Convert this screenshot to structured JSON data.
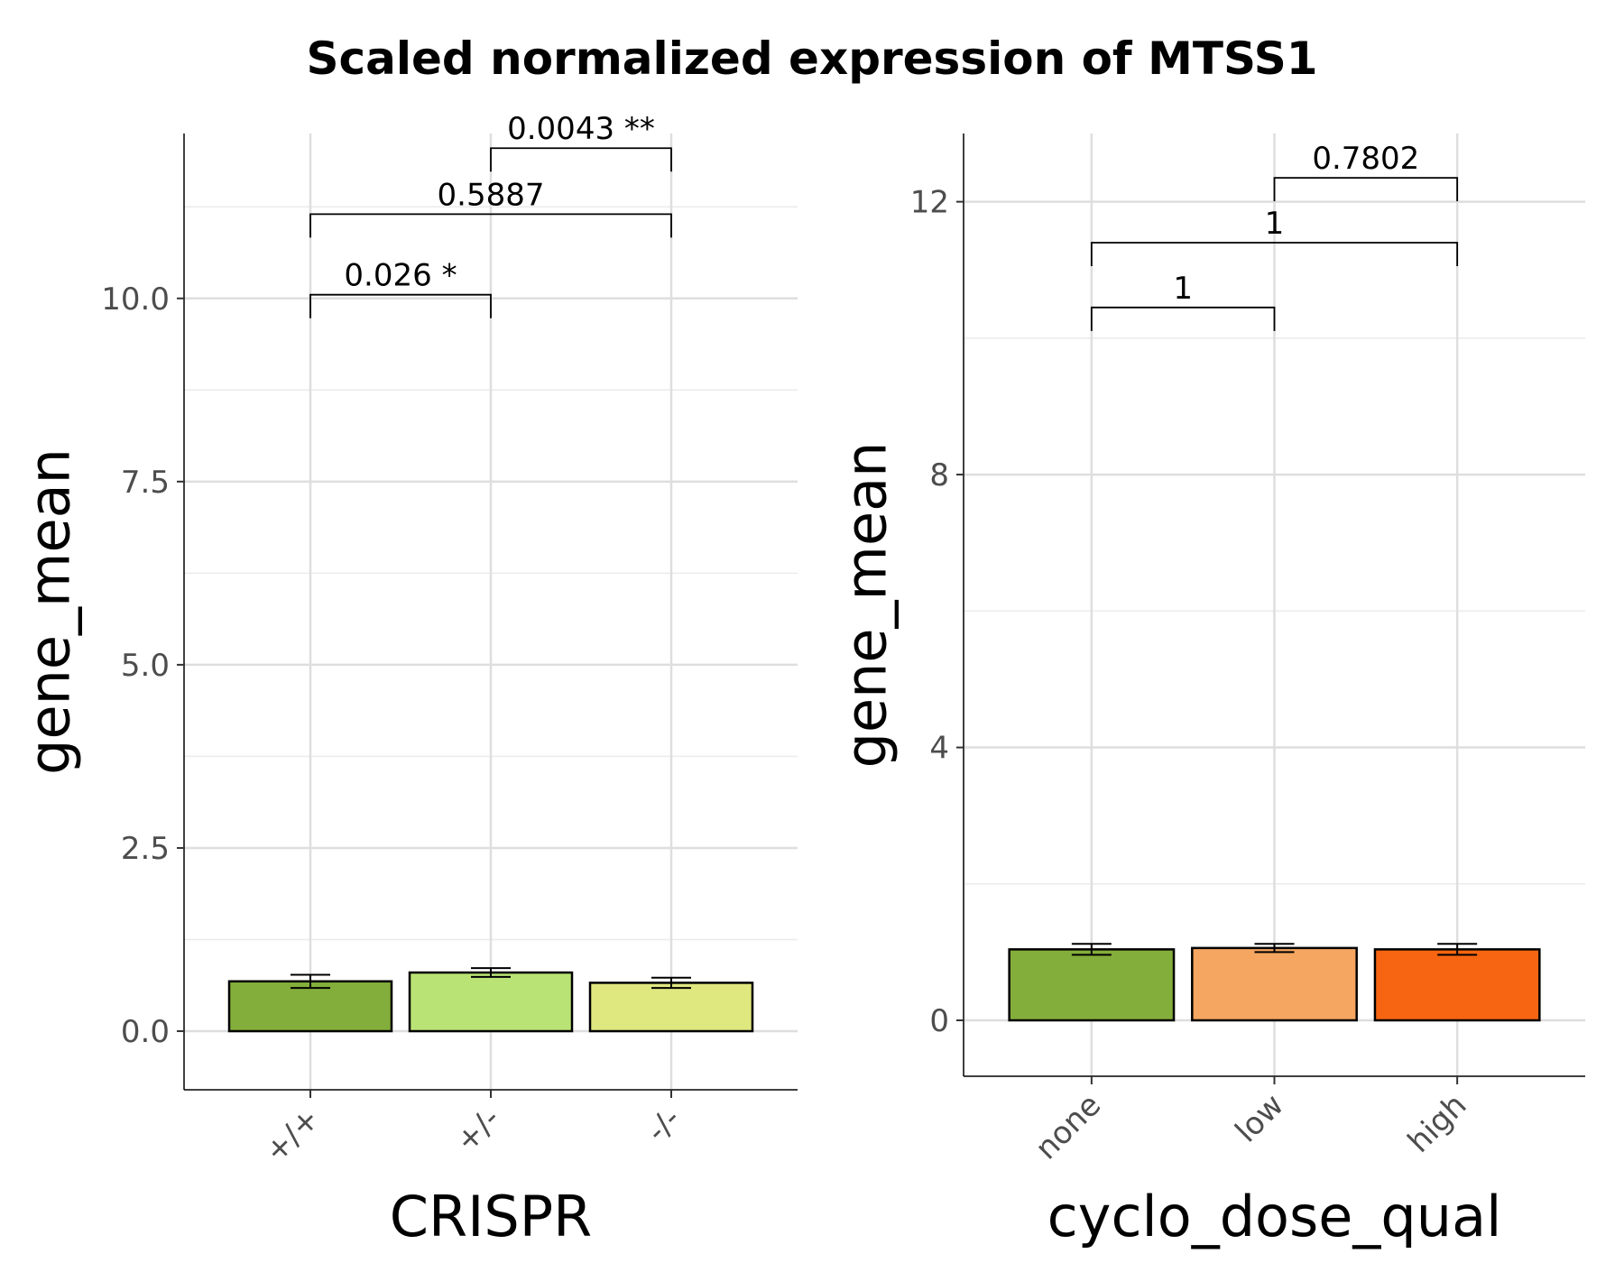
{
  "title": "Scaled normalized expression of MTSS1",
  "chart_data": [
    {
      "type": "bar",
      "xlabel": "CRISPR",
      "ylabel": "gene_mean",
      "ylim": [
        -0.8,
        12.25
      ],
      "yticks": [
        0.0,
        2.5,
        5.0,
        7.5,
        10.0
      ],
      "ytick_labels": [
        "0.0",
        "2.5",
        "5.0",
        "7.5",
        "10.0"
      ],
      "categories": [
        "+/+",
        "+/-",
        "-/-"
      ],
      "values": [
        0.68,
        0.8,
        0.66
      ],
      "errors": [
        0.09,
        0.06,
        0.07
      ],
      "colors": [
        "#84ae3b",
        "#bae375",
        "#dfe77f"
      ],
      "grid": true,
      "comparisons": [
        {
          "from": 0,
          "to": 1,
          "y": 10.05,
          "label": "0.026 *"
        },
        {
          "from": 0,
          "to": 2,
          "y": 11.15,
          "label": "0.5887"
        },
        {
          "from": 1,
          "to": 2,
          "y": 12.05,
          "label": "0.0043 **"
        }
      ]
    },
    {
      "type": "bar",
      "xlabel": "cyclo_dose_qual",
      "ylabel": "gene_mean",
      "ylim": [
        -0.82,
        13.0
      ],
      "yticks": [
        0,
        4,
        8,
        12
      ],
      "ytick_labels": [
        "0",
        "4",
        "8",
        "12"
      ],
      "categories": [
        "none",
        "low",
        "high"
      ],
      "values": [
        1.04,
        1.06,
        1.04
      ],
      "errors": [
        0.08,
        0.06,
        0.08
      ],
      "colors": [
        "#84ae3b",
        "#f5a661",
        "#f86512"
      ],
      "grid": true,
      "comparisons": [
        {
          "from": 0,
          "to": 1,
          "y": 10.45,
          "label": "1"
        },
        {
          "from": 0,
          "to": 2,
          "y": 11.4,
          "label": "1"
        },
        {
          "from": 1,
          "to": 2,
          "y": 12.35,
          "label": "0.7802"
        }
      ]
    }
  ]
}
